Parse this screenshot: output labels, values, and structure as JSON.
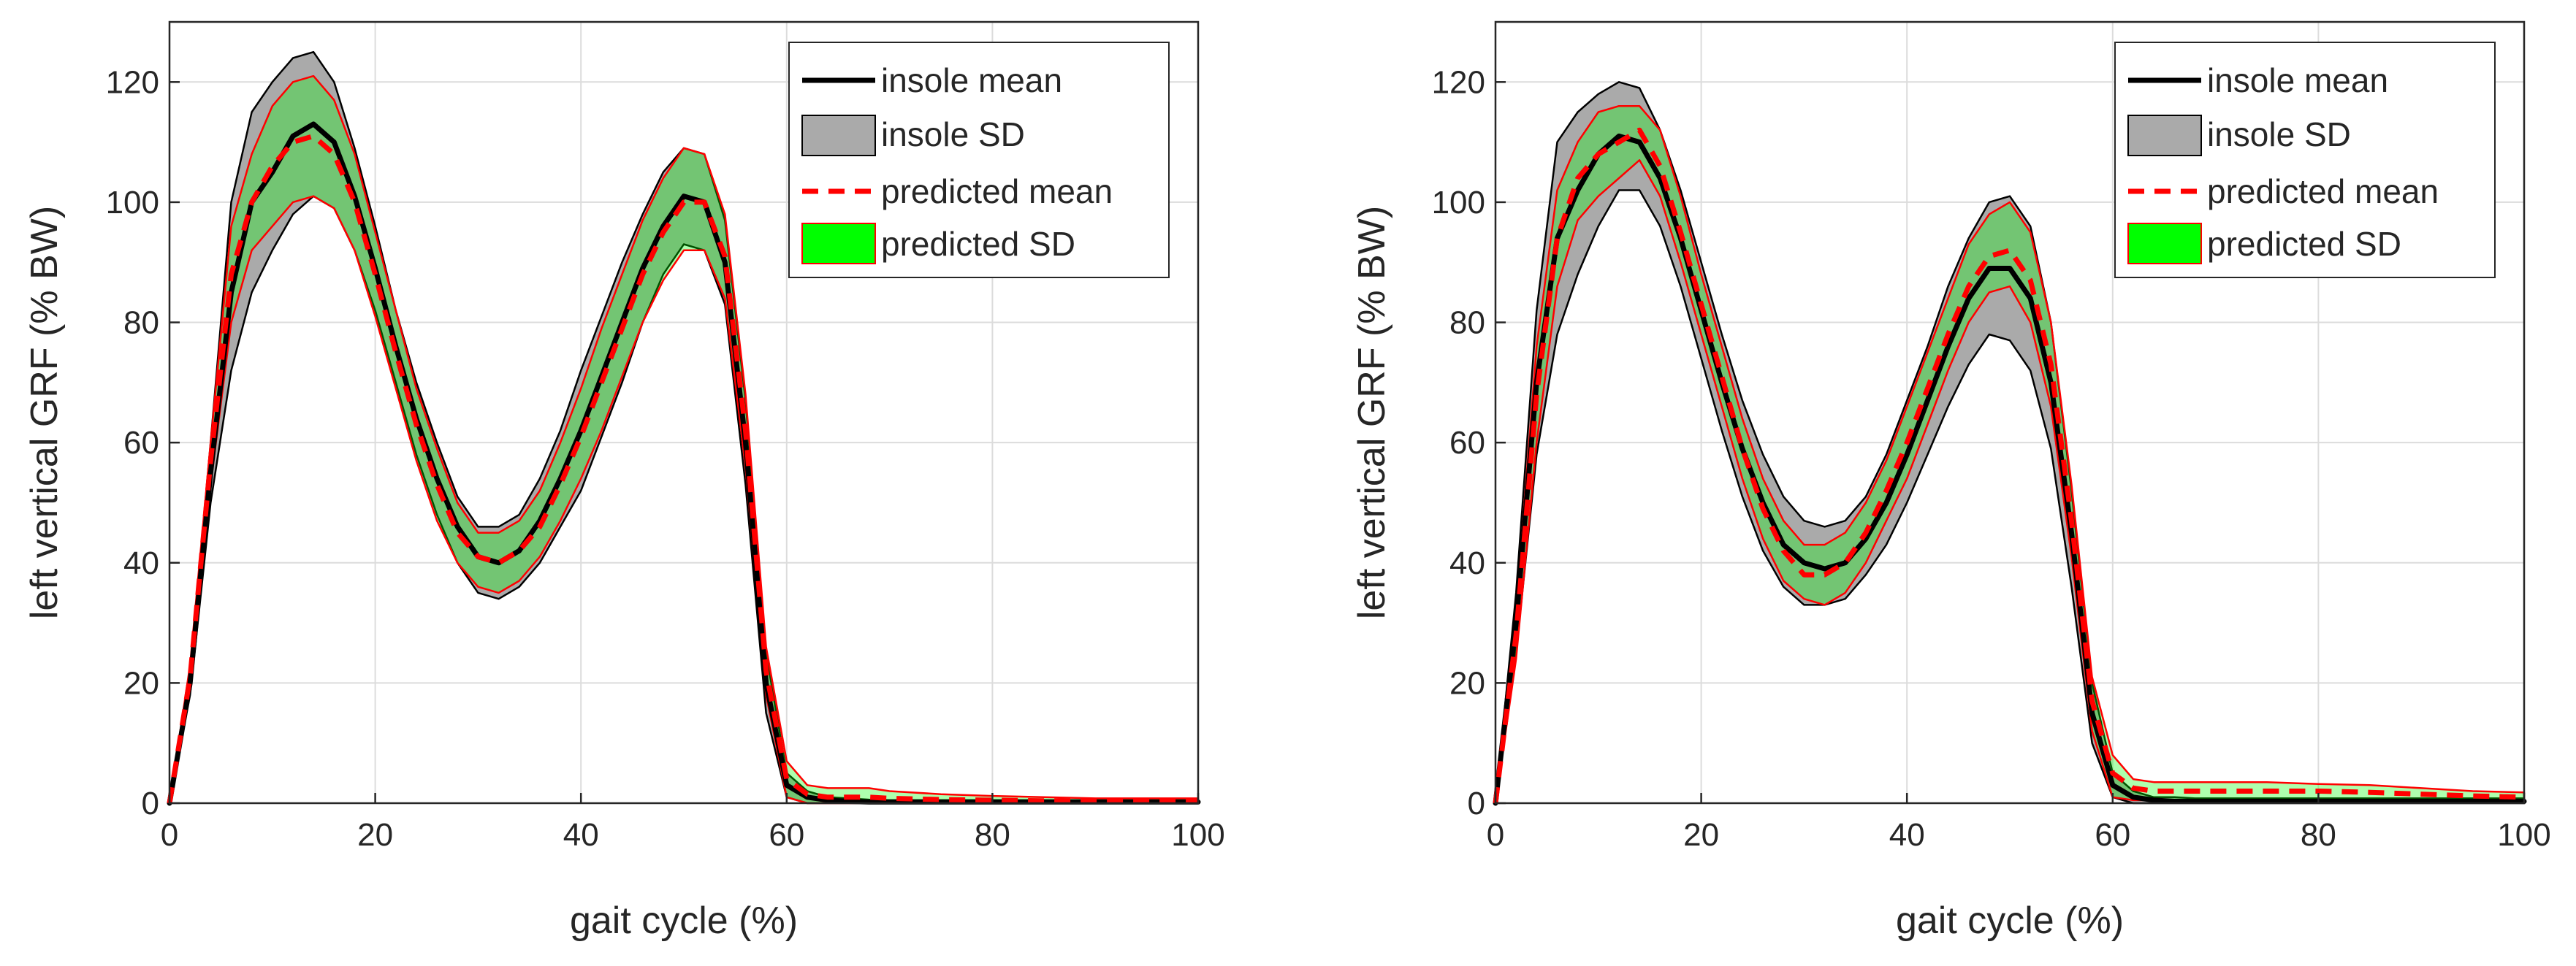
{
  "colors": {
    "insole_mean": "#000000",
    "insole_sd_fill": "#aaaaaa",
    "insole_sd_edge": "#000000",
    "predicted_mean": "#ff0000",
    "predicted_sd_fill": "#00ff00",
    "predicted_sd_edge": "#ff0000",
    "grid": "#dcdcdc",
    "axis": "#262626"
  },
  "chart_data": [
    {
      "type": "line",
      "panel": "left",
      "xlabel": "gait cycle (%)",
      "ylabel": "left vertical GRF (% BW)",
      "xlim": [
        0,
        100
      ],
      "ylim": [
        0,
        130
      ],
      "xticks": [
        0,
        20,
        40,
        60,
        80,
        100
      ],
      "yticks": [
        0,
        20,
        40,
        60,
        80,
        100,
        120
      ],
      "grid": true,
      "legend": {
        "location": "top-right",
        "entries": [
          "insole mean",
          "insole SD",
          "predicted mean",
          "predicted SD"
        ]
      },
      "x": [
        0,
        2,
        4,
        6,
        8,
        10,
        12,
        14,
        16,
        18,
        20,
        22,
        24,
        26,
        28,
        30,
        32,
        34,
        36,
        38,
        40,
        42,
        44,
        46,
        48,
        50,
        52,
        54,
        56,
        58,
        60,
        62,
        64,
        66,
        68,
        70,
        75,
        80,
        85,
        90,
        95,
        100
      ],
      "series": [
        {
          "name": "insole mean",
          "values": [
            0,
            20,
            55,
            85,
            100,
            105,
            111,
            113,
            110,
            101,
            89,
            76,
            64,
            54,
            46,
            41,
            40,
            42,
            47,
            54,
            62,
            71,
            80,
            89,
            96,
            101,
            100,
            90,
            60,
            20,
            3,
            1,
            0.5,
            0.3,
            0.2,
            0.2,
            0.2,
            0.2,
            0.2,
            0.2,
            0.2,
            0.2
          ]
        },
        {
          "name": "insole SD upper",
          "values": [
            0,
            22,
            60,
            100,
            115,
            120,
            124,
            125,
            120,
            109,
            96,
            82,
            70,
            60,
            51,
            46,
            46,
            48,
            54,
            62,
            72,
            81,
            90,
            98,
            105,
            109,
            108,
            97,
            67,
            25,
            5,
            2,
            1,
            0.8,
            0.6,
            0.5,
            0.5,
            0.5,
            0.5,
            0.5,
            0.5,
            0.5
          ]
        },
        {
          "name": "insole SD lower",
          "values": [
            0,
            18,
            50,
            72,
            85,
            92,
            98,
            101,
            99,
            92,
            82,
            70,
            58,
            48,
            40,
            35,
            34,
            36,
            40,
            46,
            52,
            61,
            70,
            80,
            88,
            93,
            92,
            83,
            53,
            15,
            1,
            0,
            0,
            0,
            0,
            0,
            0,
            0,
            0,
            0,
            0,
            0
          ]
        },
        {
          "name": "predicted mean",
          "values": [
            0,
            21,
            57,
            88,
            100,
            106,
            110,
            111,
            108,
            100,
            88,
            75,
            63,
            53,
            45,
            41,
            40,
            42,
            46,
            53,
            61,
            70,
            79,
            88,
            95,
            100,
            100,
            91,
            62,
            22,
            4,
            1.5,
            1,
            1,
            1,
            0.8,
            0.6,
            0.5,
            0.4,
            0.3,
            0.3,
            0.3
          ]
        },
        {
          "name": "predicted SD upper",
          "values": [
            0,
            23,
            60,
            96,
            108,
            116,
            120,
            121,
            117,
            108,
            95,
            82,
            69,
            59,
            50,
            45,
            45,
            47,
            52,
            60,
            69,
            79,
            88,
            97,
            104,
            109,
            108,
            98,
            68,
            26,
            7,
            3,
            2.5,
            2.5,
            2.5,
            2,
            1.5,
            1.2,
            1,
            0.8,
            0.8,
            0.8
          ]
        },
        {
          "name": "predicted SD lower",
          "values": [
            0,
            19,
            53,
            80,
            92,
            96,
            100,
            101,
            99,
            92,
            81,
            69,
            57,
            47,
            40,
            36,
            35,
            37,
            41,
            47,
            54,
            62,
            71,
            80,
            87,
            92,
            92,
            84,
            56,
            18,
            1,
            0,
            0,
            0,
            0,
            0,
            0,
            0,
            0,
            0,
            0,
            0
          ]
        }
      ]
    },
    {
      "type": "line",
      "panel": "right",
      "xlabel": "gait cycle (%)",
      "ylabel": "left vertical GRF (% BW)",
      "xlim": [
        0,
        100
      ],
      "ylim": [
        0,
        130
      ],
      "xticks": [
        0,
        20,
        40,
        60,
        80,
        100
      ],
      "yticks": [
        0,
        20,
        40,
        60,
        80,
        100,
        120
      ],
      "grid": true,
      "legend": {
        "location": "top-right",
        "entries": [
          "insole mean",
          "insole SD",
          "predicted mean",
          "predicted SD"
        ]
      },
      "x": [
        0,
        2,
        4,
        6,
        8,
        10,
        12,
        14,
        16,
        18,
        20,
        22,
        24,
        26,
        28,
        30,
        32,
        34,
        36,
        38,
        40,
        42,
        44,
        46,
        48,
        50,
        52,
        54,
        56,
        58,
        60,
        62,
        64,
        66,
        68,
        70,
        75,
        80,
        85,
        90,
        95,
        100
      ],
      "series": [
        {
          "name": "insole mean",
          "values": [
            0,
            30,
            70,
            94,
            102,
            108,
            111,
            110,
            104,
            94,
            82,
            70,
            59,
            50,
            43,
            40,
            39,
            40,
            44,
            50,
            58,
            67,
            76,
            84,
            89,
            89,
            84,
            70,
            45,
            15,
            3,
            1,
            0.5,
            0.3,
            0.3,
            0.3,
            0.3,
            0.3,
            0.3,
            0.3,
            0.3,
            0.3
          ]
        },
        {
          "name": "insole SD upper",
          "values": [
            0,
            35,
            82,
            110,
            115,
            118,
            120,
            119,
            112,
            102,
            90,
            78,
            67,
            58,
            51,
            47,
            46,
            47,
            51,
            58,
            67,
            76,
            86,
            94,
            100,
            101,
            96,
            80,
            52,
            20,
            5,
            2,
            1,
            1,
            0.8,
            0.8,
            0.8,
            0.8,
            0.8,
            0.8,
            0.8,
            0.8
          ]
        },
        {
          "name": "insole SD lower",
          "values": [
            0,
            25,
            58,
            78,
            88,
            96,
            102,
            102,
            96,
            86,
            74,
            62,
            51,
            42,
            36,
            33,
            33,
            34,
            38,
            43,
            50,
            58,
            66,
            73,
            78,
            77,
            72,
            59,
            36,
            10,
            1,
            0,
            0,
            0,
            0,
            0,
            0,
            0,
            0,
            0,
            0,
            0
          ]
        },
        {
          "name": "predicted mean",
          "values": [
            0,
            28,
            68,
            94,
            104,
            108,
            110,
            112,
            106,
            95,
            83,
            71,
            59,
            49,
            42,
            38,
            38,
            40,
            45,
            52,
            60,
            69,
            78,
            86,
            91,
            92,
            87,
            73,
            47,
            17,
            5,
            2.5,
            2,
            2,
            2,
            2,
            2,
            2,
            1.8,
            1.5,
            1.2,
            1
          ]
        },
        {
          "name": "predicted SD upper",
          "values": [
            0,
            32,
            76,
            102,
            110,
            115,
            116,
            116,
            112,
            101,
            88,
            76,
            64,
            54,
            47,
            43,
            43,
            45,
            50,
            57,
            66,
            75,
            84,
            93,
            98,
            100,
            95,
            80,
            53,
            21,
            8,
            4,
            3.5,
            3.5,
            3.5,
            3.5,
            3.5,
            3.2,
            3,
            2.5,
            2,
            1.8
          ]
        },
        {
          "name": "predicted SD lower",
          "values": [
            0,
            24,
            60,
            86,
            97,
            101,
            104,
            107,
            101,
            90,
            78,
            66,
            54,
            44,
            37,
            34,
            33,
            35,
            40,
            47,
            54,
            63,
            72,
            80,
            85,
            86,
            80,
            66,
            41,
            12,
            1,
            0.5,
            0.5,
            0.5,
            0.5,
            0.5,
            0.5,
            0.5,
            0.5,
            0.3,
            0.3,
            0.3
          ]
        }
      ]
    }
  ]
}
